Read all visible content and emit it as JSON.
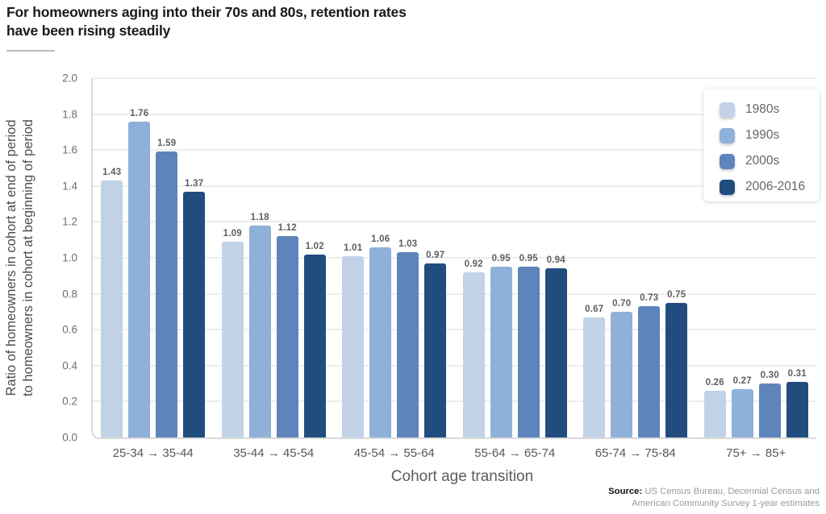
{
  "title": {
    "line1": "For homeowners aging into their 70s and 80s, retention rates",
    "line2": "have been rising steadily"
  },
  "chart_data": {
    "type": "bar",
    "title": "For homeowners aging into their 70s and 80s, retention rates have been rising steadily",
    "categories": [
      "25-34 → 35-44",
      "35-44 → 45-54",
      "45-54 → 55-64",
      "55-64 → 65-74",
      "65-74 → 75-84",
      "75+ → 85+"
    ],
    "series": [
      {
        "name": "1980s",
        "color": "#c2d2e7",
        "values": [
          1.43,
          1.09,
          1.01,
          0.92,
          0.67,
          0.26
        ]
      },
      {
        "name": "1990s",
        "color": "#8fb0d9",
        "values": [
          1.76,
          1.18,
          1.06,
          0.95,
          0.7,
          0.27
        ]
      },
      {
        "name": "2000s",
        "color": "#5e84bc",
        "values": [
          1.59,
          1.12,
          1.03,
          0.95,
          0.73,
          0.3
        ]
      },
      {
        "name": "2006-2016",
        "color": "#214d7e",
        "values": [
          1.37,
          1.02,
          0.97,
          0.94,
          0.75,
          0.31
        ]
      }
    ],
    "xlabel": "Cohort age transition",
    "ylabel": "Ratio of homeowners in cohort at end of period to homeowners in cohort at beginning of period",
    "ylabel_lines": [
      "Ratio of homeowners in cohort at end of period",
      "to homeowners in cohort at beginning of period"
    ],
    "ylim": [
      0,
      2.0
    ],
    "ytick_step": 0.2,
    "grid": true,
    "legend_position": "top-right"
  },
  "source": {
    "label": "Source:",
    "line1": "US Census Bureau, Decennial Census and",
    "line2": "American Community Survey 1-year estimates"
  }
}
